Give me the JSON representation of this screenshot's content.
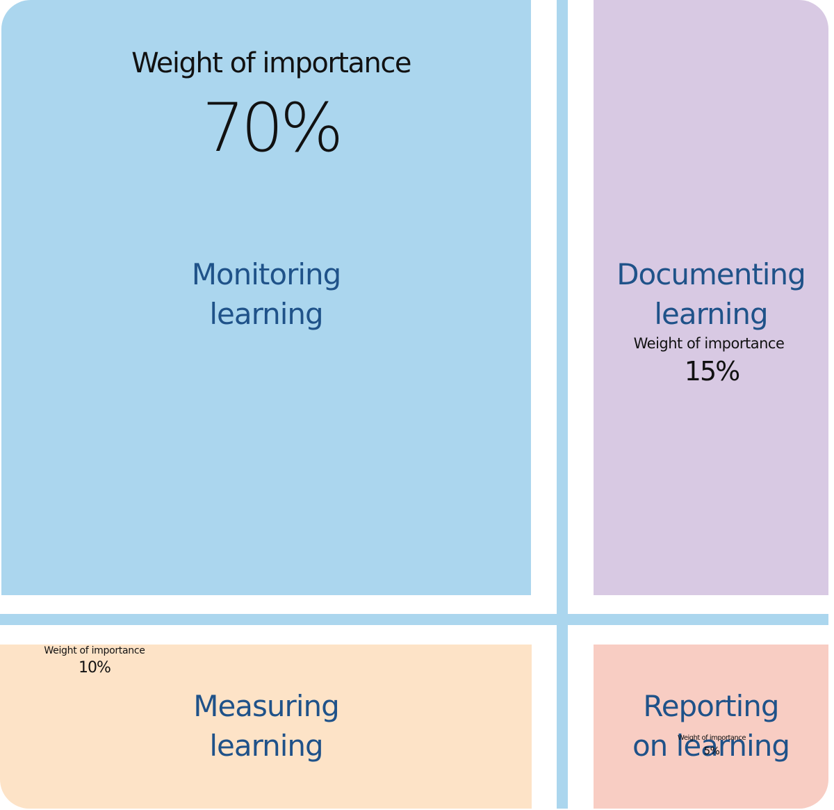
{
  "colors": {
    "monitoring_fill": "#abd6ee",
    "documenting_fill": "#d8c9e3",
    "measuring_fill": "#fde3c7",
    "reporting_fill": "#f8cdc3",
    "divider": "#abd6ee",
    "title_text": "#1f5289",
    "weight_text": "#111111"
  },
  "quadrants": {
    "monitoring": {
      "title_line1": "Monitoring",
      "title_line2": "learning",
      "weight_label": "Weight of importance",
      "weight_value": "70%"
    },
    "documenting": {
      "title_line1": "Documenting",
      "title_line2": "learning",
      "weight_label": "Weight of importance",
      "weight_value": "15%"
    },
    "measuring": {
      "title_line1": "Measuring",
      "title_line2": "learning",
      "weight_label": "Weight of importance",
      "weight_value": "10%"
    },
    "reporting": {
      "title_line1": "Reporting",
      "title_line2": "on learning",
      "weight_label": "Weight of importance",
      "weight_value": "5%"
    }
  }
}
